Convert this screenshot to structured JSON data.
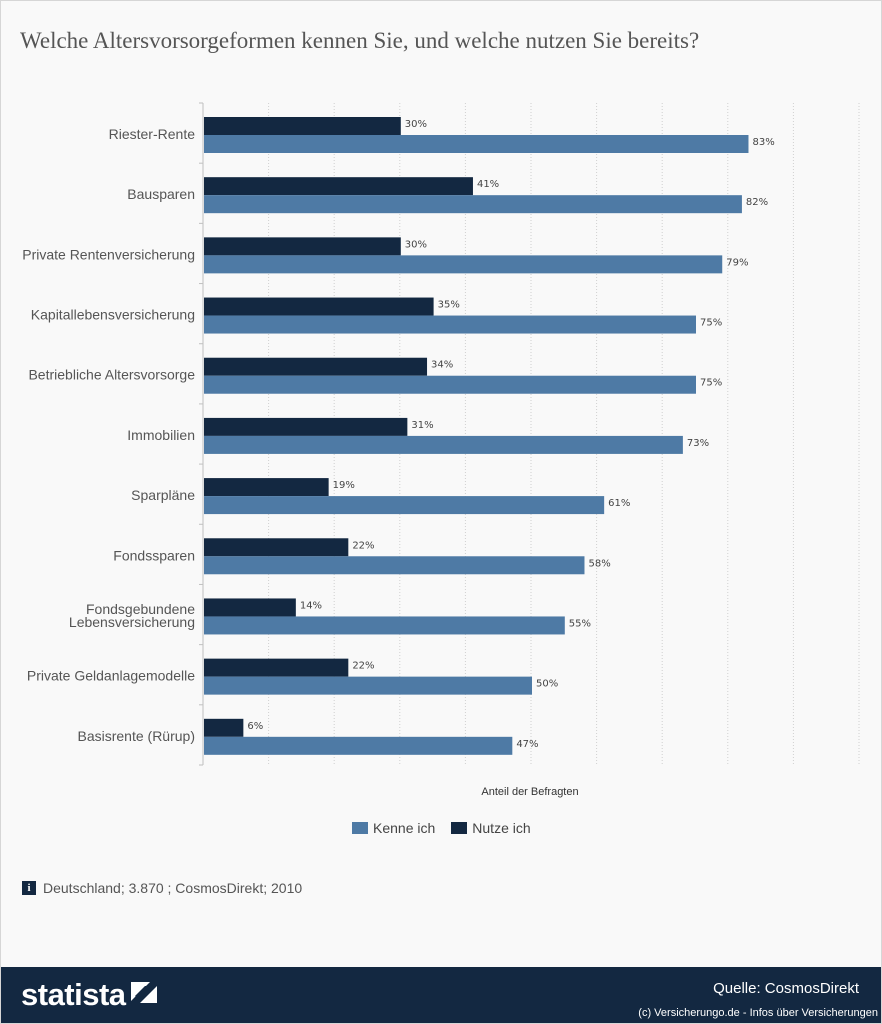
{
  "title": "Welche Altersvorsorgeformen kennen Sie, und welche nutzen Sie bereits?",
  "colors": {
    "kenne": "#4e7aa5",
    "nutze": "#132841",
    "grid": "#d0d0d0",
    "axis_text": "#555555",
    "footer": "#132841"
  },
  "chart_data": {
    "type": "bar",
    "orientation": "horizontal",
    "title": "Welche Altersvorsorgeformen kennen Sie, und welche nutzen Sie bereits?",
    "xlabel": "Anteil der Befragten",
    "ylabel": "",
    "xlim": [
      0,
      100
    ],
    "grid": true,
    "legend_position": "bottom",
    "categories": [
      "Riester-Rente",
      "Bausparen",
      "Private Rentenversicherung",
      "Kapitallebensversicherung",
      "Betriebliche Altersvorsorge",
      "Immobilien",
      "Sparpläne",
      "Fondssparen",
      "Fondsgebundene Lebensversicherung",
      "Private Geldanlagemodelle",
      "Basisrente (Rürup)"
    ],
    "category_lines": [
      [
        "Riester-Rente"
      ],
      [
        "Bausparen"
      ],
      [
        "Private Rentenversicherung"
      ],
      [
        "Kapitallebensversicherung"
      ],
      [
        "Betriebliche Altersvorsorge"
      ],
      [
        "Immobilien"
      ],
      [
        "Sparpläne"
      ],
      [
        "Fondssparen"
      ],
      [
        "Fondsgebundene",
        "Lebensversicherung"
      ],
      [
        "Private Geldanlagemodelle"
      ],
      [
        "Basisrente (Rürup)"
      ]
    ],
    "series": [
      {
        "name": "Nutze ich",
        "color": "#132841",
        "values": [
          30,
          41,
          30,
          35,
          34,
          31,
          19,
          22,
          14,
          22,
          6
        ]
      },
      {
        "name": "Kenne ich",
        "color": "#4e7aa5",
        "values": [
          83,
          82,
          79,
          75,
          75,
          73,
          61,
          58,
          55,
          50,
          47
        ]
      }
    ],
    "value_suffix": "%"
  },
  "legend": [
    {
      "name": "Kenne ich",
      "color": "#4e7aa5"
    },
    {
      "name": "Nutze ich",
      "color": "#132841"
    }
  ],
  "info_text": "Deutschland; 3.870 ; CosmosDirekt; 2010",
  "info_icon": "info-icon",
  "footer": {
    "brand": "statista",
    "brand_icon": "statista-logo-icon",
    "source": "Quelle: CosmosDirekt",
    "copyright": "(c) Versicherungo.de - Infos über Versicherungen"
  }
}
